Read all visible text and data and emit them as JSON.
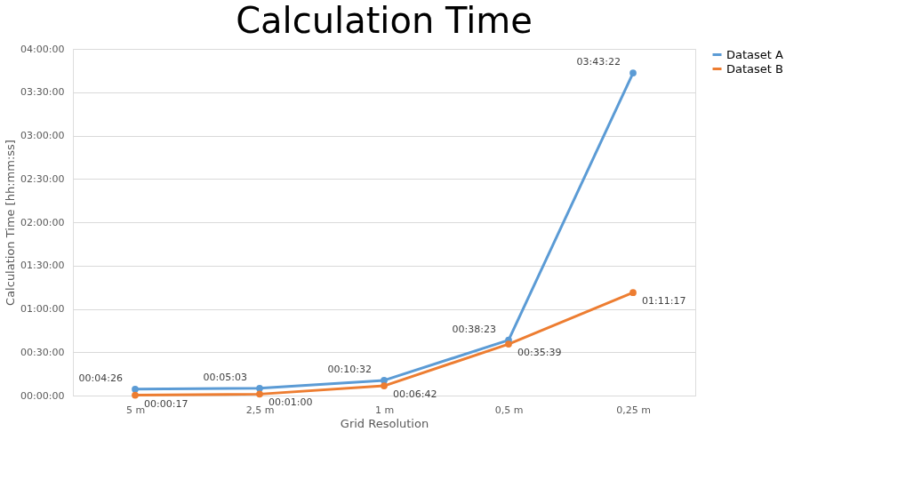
{
  "chart_data": {
    "type": "line",
    "title": "Calculation Time",
    "xlabel": "Grid Resolution",
    "ylabel": "Calculation Time [hh:mm:ss]",
    "categories": [
      "5 m",
      "2,5 m",
      "1 m",
      "0,5 m",
      "0,25 m"
    ],
    "series": [
      {
        "name": "Dataset A",
        "color": "#5b9bd5",
        "values": [
          0.07389,
          0.08417,
          0.17556,
          0.63972,
          3.72278
        ],
        "value_labels": [
          "00:04:26",
          "00:05:03",
          "00:10:32",
          "00:38:23",
          "03:43:22"
        ]
      },
      {
        "name": "Dataset B",
        "color": "#ed7d31",
        "values": [
          0.00472,
          0.01667,
          0.11167,
          0.59417,
          1.18806
        ],
        "value_labels": [
          "00:00:17",
          "00:01:00",
          "00:06:42",
          "00:35:39",
          "01:11:17"
        ]
      }
    ],
    "ylim": [
      0,
      4
    ],
    "yticks": [
      {
        "value": 0,
        "label": "00:00:00"
      },
      {
        "value": 0.5,
        "label": "00:30:00"
      },
      {
        "value": 1,
        "label": "01:00:00"
      },
      {
        "value": 1.5,
        "label": "01:30:00"
      },
      {
        "value": 2,
        "label": "02:00:00"
      },
      {
        "value": 2.5,
        "label": "02:30:00"
      },
      {
        "value": 3,
        "label": "03:00:00"
      },
      {
        "value": 3.5,
        "label": "03:30:00"
      },
      {
        "value": 4,
        "label": "04:00:00"
      }
    ],
    "grid": "y",
    "legend": "right",
    "marker": "circle",
    "line_style": "solid"
  }
}
